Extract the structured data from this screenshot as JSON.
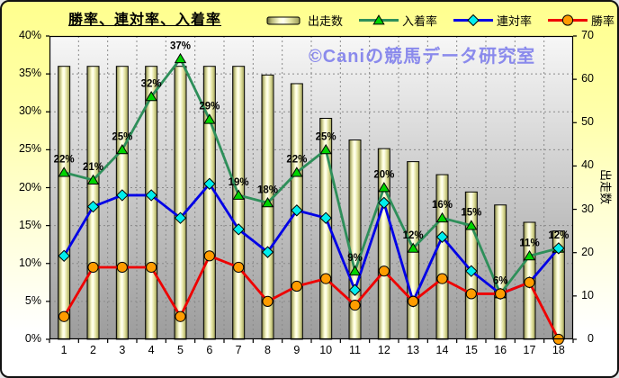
{
  "chart_data": {
    "type": "combo",
    "title": "勝率、連対率、入着率",
    "watermark": "©Caniの競馬データ研究室",
    "grid": true,
    "legend_position": "top",
    "categories": [
      "1",
      "2",
      "3",
      "4",
      "5",
      "6",
      "7",
      "8",
      "9",
      "10",
      "11",
      "12",
      "13",
      "14",
      "15",
      "16",
      "17",
      "18"
    ],
    "series": [
      {
        "key": "starts",
        "name": "出走数",
        "type": "bar",
        "axis": "right",
        "marker": "bar",
        "bar_border": "#000000",
        "bar_fill_light": "#fffff2",
        "bar_fill_dark": "#6b6b3c",
        "values": [
          63,
          63,
          63,
          63,
          63,
          63,
          63,
          61,
          59,
          51,
          46,
          44,
          41,
          38,
          34,
          31,
          27,
          25
        ]
      },
      {
        "key": "show_rate",
        "name": "入着率",
        "type": "line",
        "axis": "left",
        "marker": "triangle",
        "line_color": "#2e8f5a",
        "marker_color": "#00d400",
        "values": [
          22,
          21,
          25,
          32,
          37,
          29,
          19,
          18,
          22,
          25,
          9,
          20,
          12,
          16,
          15,
          6,
          11,
          12
        ],
        "point_labels": [
          "22%",
          "21%",
          "25%",
          "32%",
          "37%",
          "29%",
          "19%",
          "18%",
          "22%",
          "25%",
          "9%",
          "20%",
          "12%",
          "16%",
          "15%",
          "6%",
          "11%",
          "12%"
        ]
      },
      {
        "key": "place_rate",
        "name": "連対率",
        "type": "line",
        "axis": "left",
        "marker": "diamond",
        "line_color": "#0000e6",
        "marker_color": "#00eeee",
        "values": [
          11,
          17.5,
          19,
          19,
          16,
          20.5,
          14.5,
          11.5,
          17,
          16,
          6.5,
          18,
          5,
          13.5,
          9,
          6,
          7.5,
          12
        ]
      },
      {
        "key": "win_rate",
        "name": "勝率",
        "type": "line",
        "axis": "left",
        "marker": "circle",
        "line_color": "#ee0000",
        "marker_color": "#ff9c00",
        "values": [
          3,
          9.5,
          9.5,
          9.5,
          3,
          11,
          9.5,
          5,
          7,
          8,
          4.5,
          9,
          5,
          8,
          6,
          6,
          7.5,
          0
        ]
      }
    ],
    "left_axis": {
      "min": 0,
      "max": 40,
      "step": 5,
      "format": "percent",
      "ticks": [
        "40%",
        "35%",
        "30%",
        "25%",
        "20%",
        "15%",
        "10%",
        "5%",
        "0%"
      ]
    },
    "right_axis": {
      "min": 0,
      "max": 70,
      "step": 10,
      "title": "出走数",
      "ticks": [
        "70",
        "60",
        "50",
        "40",
        "30",
        "20",
        "10",
        "0"
      ]
    }
  },
  "style": {
    "frame_background_top": "#ffff8e",
    "frame_background_bottom": "#ffffff",
    "plot_background_top": "#f7f7f7",
    "plot_background_bottom": "#9c9c9c",
    "gridline_color": "#8a8a8a",
    "watermark_color": "#8a8aec"
  }
}
